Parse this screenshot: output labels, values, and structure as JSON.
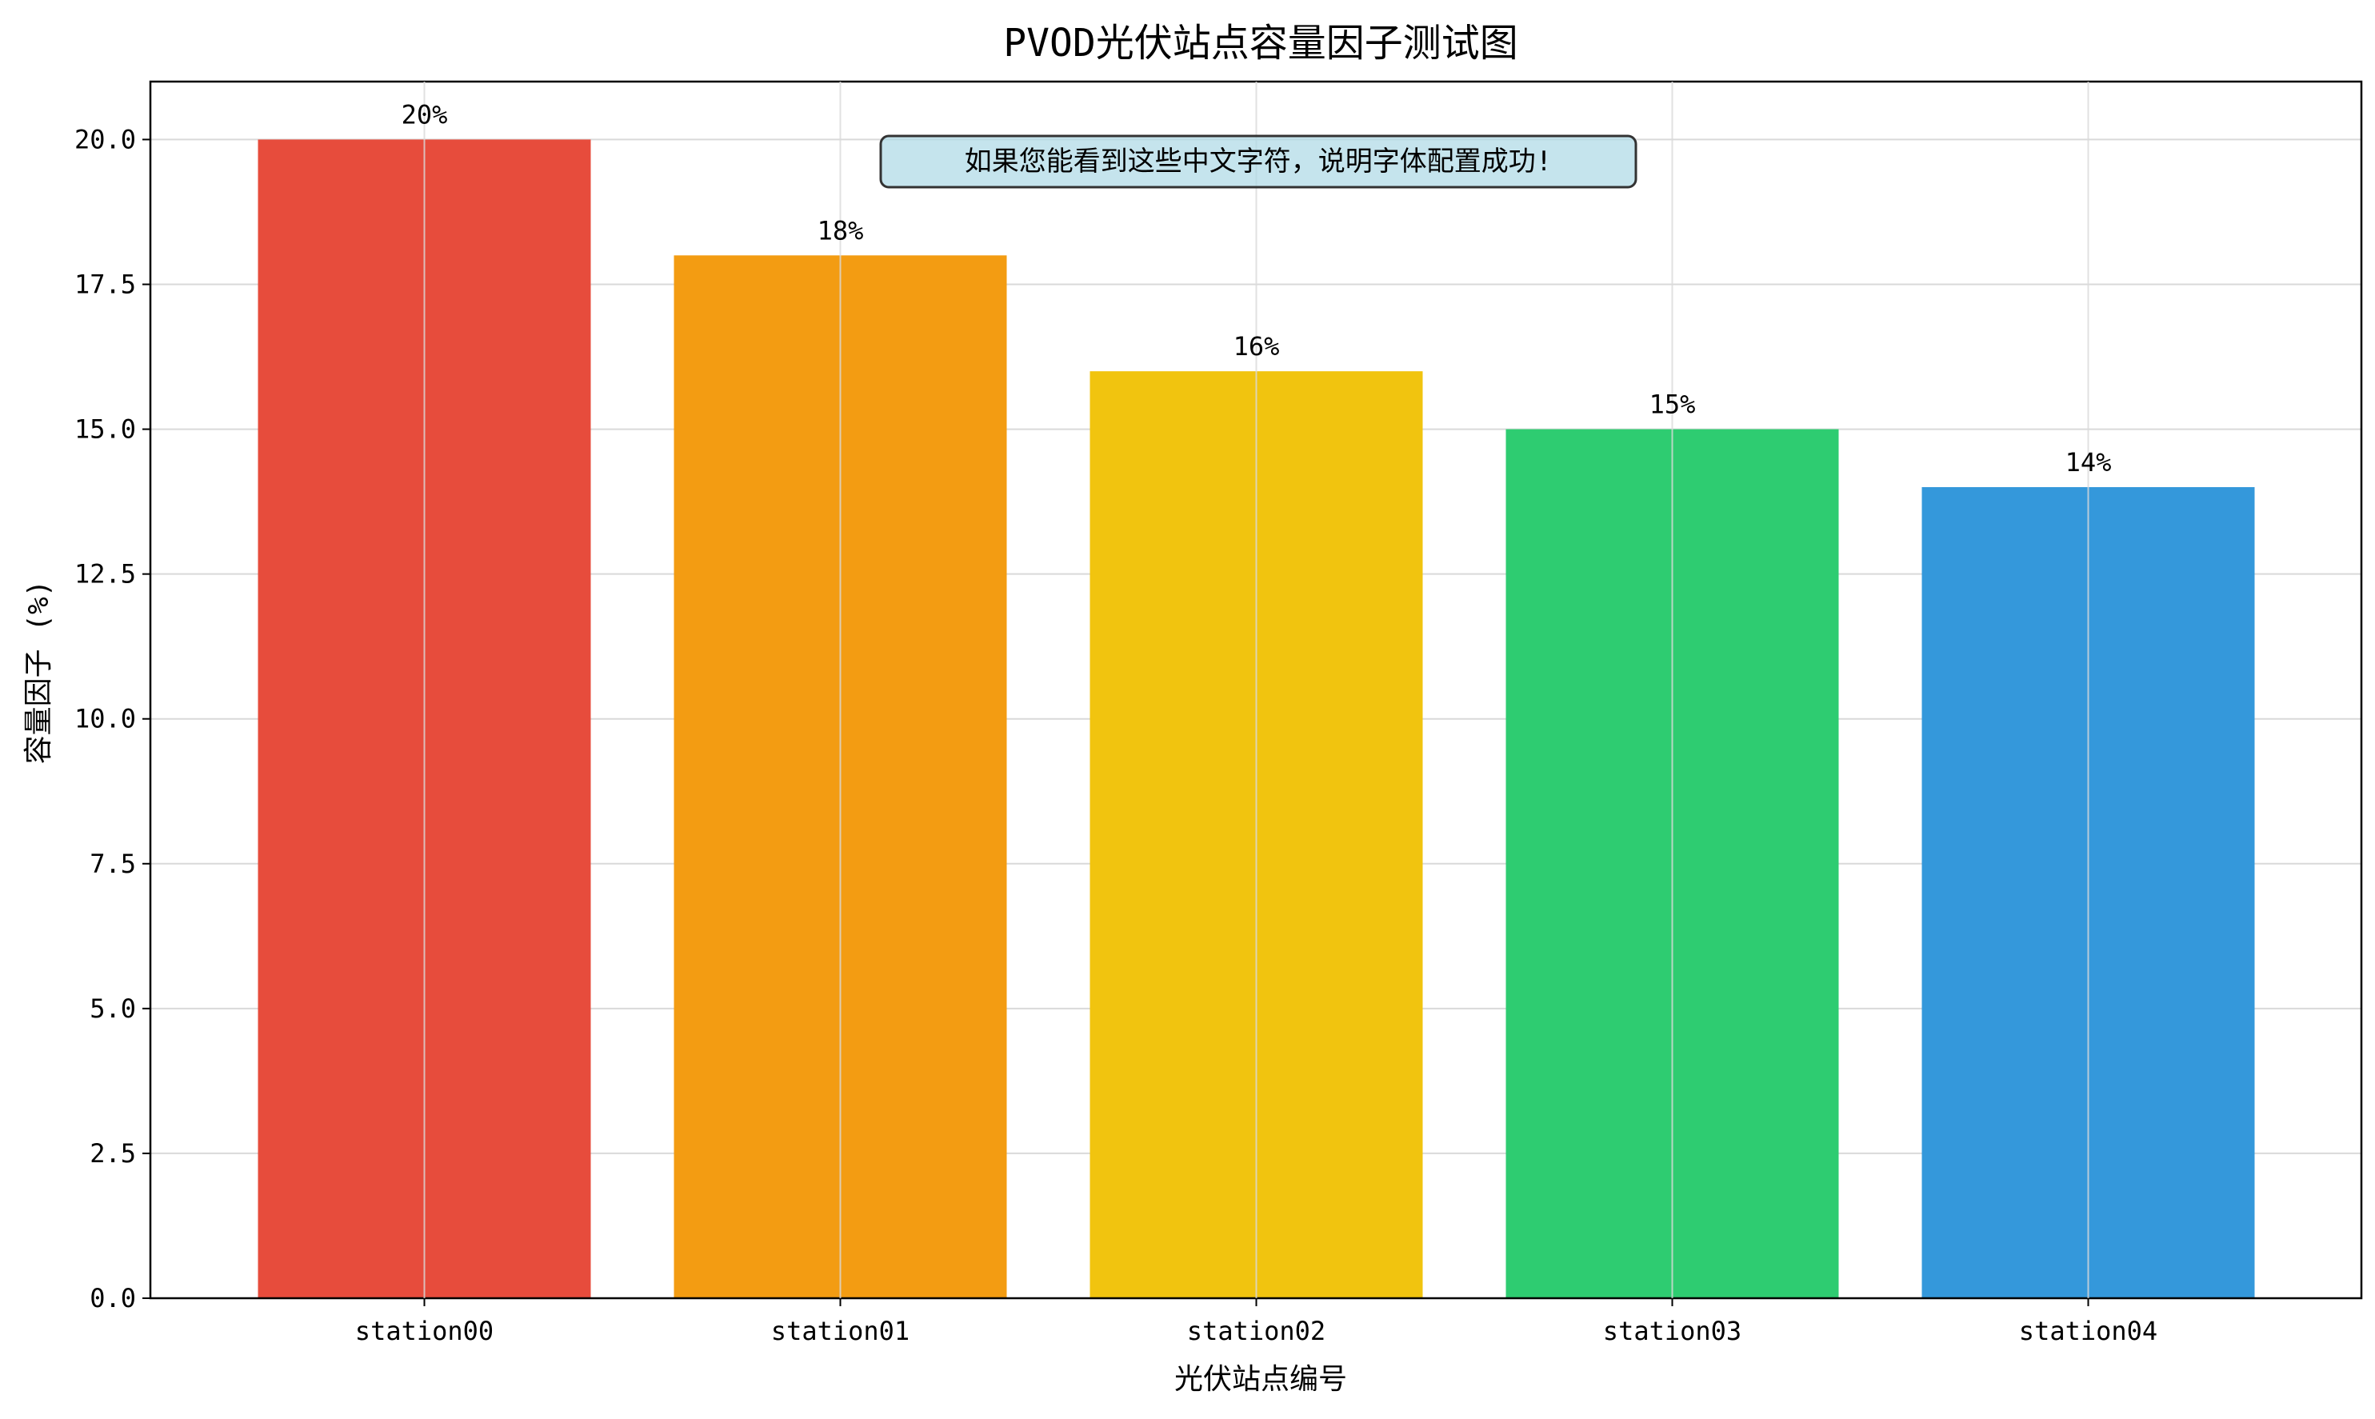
{
  "chart_data": {
    "type": "bar",
    "title": "PVOD光伏站点容量因子测试图",
    "xlabel": "光伏站点编号",
    "ylabel": "容量因子 (%)",
    "categories": [
      "station00",
      "station01",
      "station02",
      "station03",
      "station04"
    ],
    "values": [
      20,
      18,
      16,
      15,
      14
    ],
    "data_labels": [
      "20%",
      "18%",
      "16%",
      "15%",
      "14%"
    ],
    "colors": [
      "#e74c3c",
      "#f39c12",
      "#f1c40f",
      "#2ecc71",
      "#3498db"
    ],
    "ylim": [
      0,
      21
    ],
    "yticks": [
      "0.0",
      "2.5",
      "5.0",
      "7.5",
      "10.0",
      "12.5",
      "15.0",
      "17.5",
      "20.0"
    ],
    "grid": true,
    "annotation": "如果您能看到这些中文字符，说明字体配置成功!"
  }
}
